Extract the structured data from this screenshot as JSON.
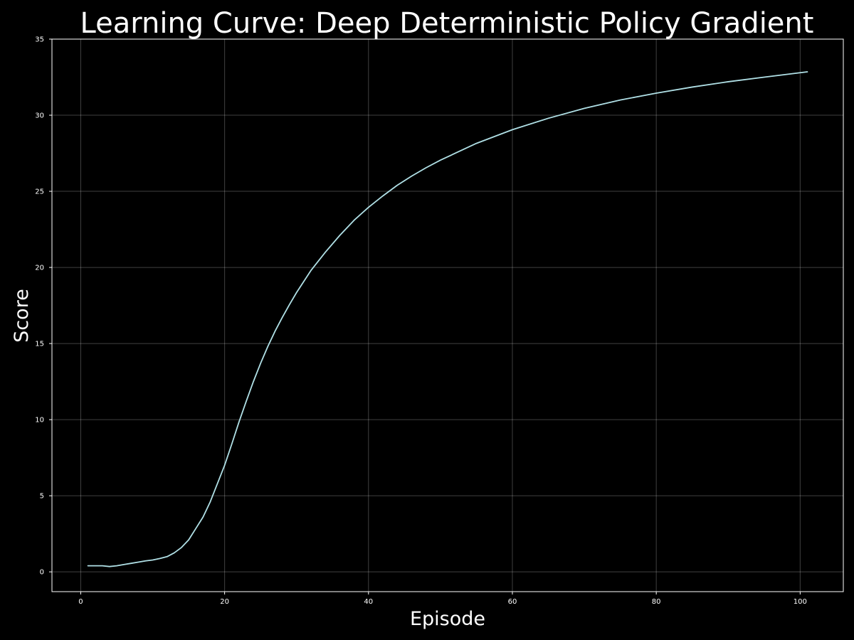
{
  "chart_data": {
    "type": "line",
    "title": "Learning Curve: Deep Deterministic Policy Gradient",
    "xlabel": "Episode",
    "ylabel": "Score",
    "xlim": [
      -4,
      106
    ],
    "ylim": [
      -1.3,
      35
    ],
    "xticks": [
      0,
      20,
      40,
      60,
      80,
      100
    ],
    "yticks": [
      0,
      5,
      10,
      15,
      20,
      25,
      30,
      35
    ],
    "grid": true,
    "legend": "none",
    "series": [
      {
        "color": "#b0e0e6",
        "x": [
          1,
          2,
          3,
          4,
          5,
          6,
          7,
          8,
          9,
          10,
          11,
          12,
          13,
          14,
          15,
          16,
          17,
          18,
          19,
          20,
          21,
          22,
          23,
          24,
          25,
          26,
          27,
          28,
          29,
          30,
          32,
          34,
          36,
          38,
          40,
          42,
          44,
          46,
          48,
          50,
          55,
          60,
          65,
          70,
          75,
          80,
          85,
          90,
          95,
          101
        ],
        "y": [
          0.4,
          0.4,
          0.4,
          0.35,
          0.4,
          0.48,
          0.56,
          0.64,
          0.72,
          0.78,
          0.88,
          1.0,
          1.25,
          1.6,
          2.1,
          2.85,
          3.6,
          4.6,
          5.8,
          7.0,
          8.4,
          9.85,
          11.2,
          12.5,
          13.7,
          14.8,
          15.8,
          16.7,
          17.55,
          18.35,
          19.8,
          21.0,
          22.1,
          23.1,
          23.95,
          24.7,
          25.4,
          26.0,
          26.55,
          27.05,
          28.15,
          29.05,
          29.8,
          30.45,
          31.0,
          31.45,
          31.85,
          32.2,
          32.5,
          32.85
        ]
      }
    ]
  }
}
